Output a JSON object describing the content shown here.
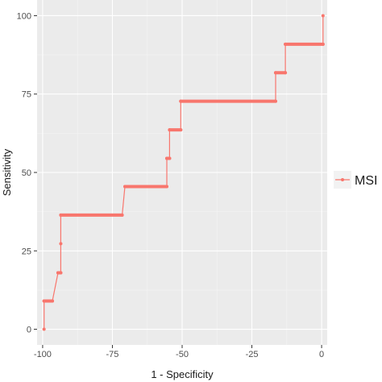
{
  "chart_data": {
    "type": "line",
    "xlabel": "1 - Specificity",
    "ylabel": "Sensitivity",
    "xlim": [
      -102,
      2
    ],
    "ylim": [
      -5,
      105
    ],
    "x_ticks": [
      -100,
      -75,
      -50,
      -25,
      0
    ],
    "x_tick_labels": [
      "-100",
      "-75",
      "-50",
      "-25",
      "0"
    ],
    "y_ticks": [
      0,
      25,
      50,
      75,
      100
    ],
    "y_tick_labels": [
      "0",
      "25",
      "50",
      "75",
      "100"
    ],
    "grid": true,
    "legend_position": "right",
    "series": [
      {
        "name": "MSI",
        "color": "#f8766d",
        "step": true,
        "x": [
          -99.5,
          -99.5,
          -96.5,
          -94.5,
          -93.5,
          -93.5,
          -93.5,
          -71.5,
          -70.5,
          -55.5,
          -55.5,
          -54.5,
          -54.5,
          -50.5,
          -50.5,
          -16.5,
          -16.5,
          -13,
          -13,
          0.5,
          0.5
        ],
        "y": [
          0,
          9,
          9,
          18,
          18,
          27.3,
          36.4,
          36.4,
          45.5,
          45.5,
          54.5,
          54.5,
          63.6,
          63.6,
          72.7,
          72.7,
          81.8,
          81.8,
          90.9,
          90.9,
          100
        ]
      }
    ]
  },
  "legend": {
    "label": "MSI"
  }
}
